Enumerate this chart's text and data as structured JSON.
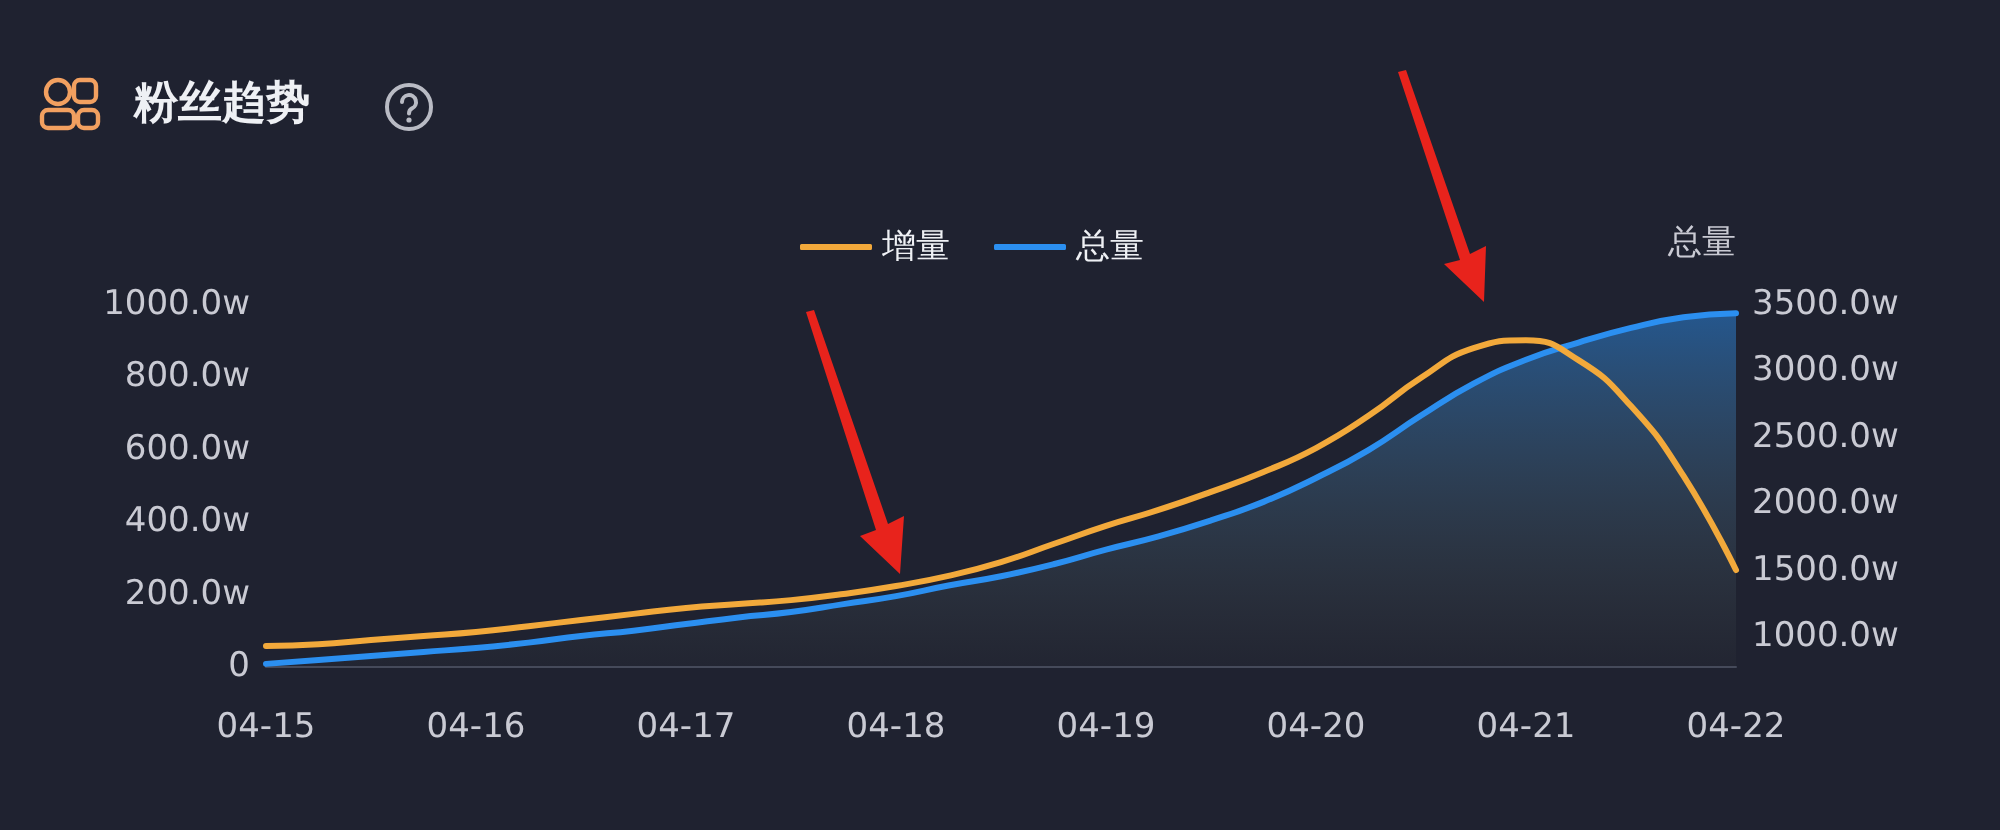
{
  "chart_data": {
    "type": "line",
    "title": "粉丝趋势",
    "y2label": "总量",
    "categories": [
      "04-15",
      null,
      null,
      null,
      "04-16",
      null,
      null,
      null,
      "04-17",
      null,
      null,
      null,
      "04-18",
      null,
      null,
      null,
      "04-19",
      null,
      null,
      null,
      "04-20",
      null,
      null,
      null,
      "04-21",
      null,
      null,
      null,
      "04-22"
    ],
    "series": [
      {
        "name": "增量",
        "color": "#f2a93b",
        "values": [
          55,
          60,
          72,
          83,
          94,
          110,
          127,
          144,
          160,
          171,
          182,
          199,
          221,
          249,
          287,
          337,
          387,
          431,
          481,
          536,
          602,
          691,
          796,
          878,
          900,
          845,
          718,
          525,
          265
        ]
      },
      {
        "name": "总量",
        "type": "area",
        "axis": "y2",
        "color": "#2b8ff0",
        "values": [
          790,
          820,
          850,
          880,
          910,
          950,
          1000,
          1040,
          1090,
          1140,
          1180,
          1240,
          1300,
          1380,
          1450,
          1540,
          1650,
          1750,
          1870,
          2010,
          2190,
          2400,
          2660,
          2900,
          3080,
          3210,
          3320,
          3400,
          3430
        ]
      }
    ],
    "ylim": [
      0,
      1000
    ],
    "yticks": [
      0,
      {
        "value": 200,
        "label": "200.0w"
      },
      {
        "value": 400,
        "label": "400.0w"
      },
      {
        "value": 600,
        "label": "600.0w"
      },
      {
        "value": 800,
        "label": "800.0w"
      },
      {
        "value": 1000,
        "label": "1000.0w"
      }
    ],
    "y2lim": [
      774,
      3500
    ],
    "y2ticks": [
      {
        "value": 1000,
        "label": "1000.0w"
      },
      {
        "value": 1500,
        "label": "1500.0w"
      },
      {
        "value": 2000,
        "label": "2000.0w"
      },
      {
        "value": 2500,
        "label": "2500.0w"
      },
      {
        "value": 3000,
        "label": "3000.0w"
      },
      {
        "value": 3500,
        "label": "3500.0w"
      }
    ],
    "grid": false,
    "legend": "top",
    "marker": "none",
    "line_style": "solid"
  }
}
